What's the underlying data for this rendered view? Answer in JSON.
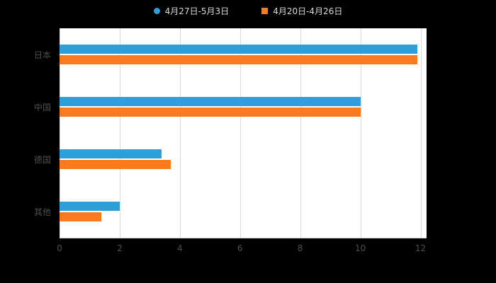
{
  "chart_data": {
    "type": "bar",
    "orientation": "horizontal",
    "title": "",
    "categories": [
      "日本",
      "中国",
      "德国",
      "其他"
    ],
    "series": [
      {
        "name": "4月27日-5月3日",
        "color": "#2E9FD8",
        "marker": "circle",
        "values": [
          11.9,
          10.0,
          3.4,
          2.0
        ]
      },
      {
        "name": "4月20日-4月26日",
        "color": "#FA7A20",
        "marker": "square",
        "values": [
          11.9,
          10.0,
          3.7,
          1.4
        ]
      }
    ],
    "x_ticks": [
      0,
      2,
      4,
      6,
      8,
      10,
      12
    ],
    "x_max": 12.2,
    "grid": true,
    "legend_position": "top"
  },
  "colors": {
    "page_background": "#000000",
    "plot_background": "#ffffff",
    "gridline": "#dcdcdc",
    "axis_tick_label": "#4f4f4f",
    "category_label": "#4f4f4f",
    "legend_text": "#d9d9d9",
    "series_blue": "#2E9FD8",
    "series_orange": "#FA7A20"
  }
}
